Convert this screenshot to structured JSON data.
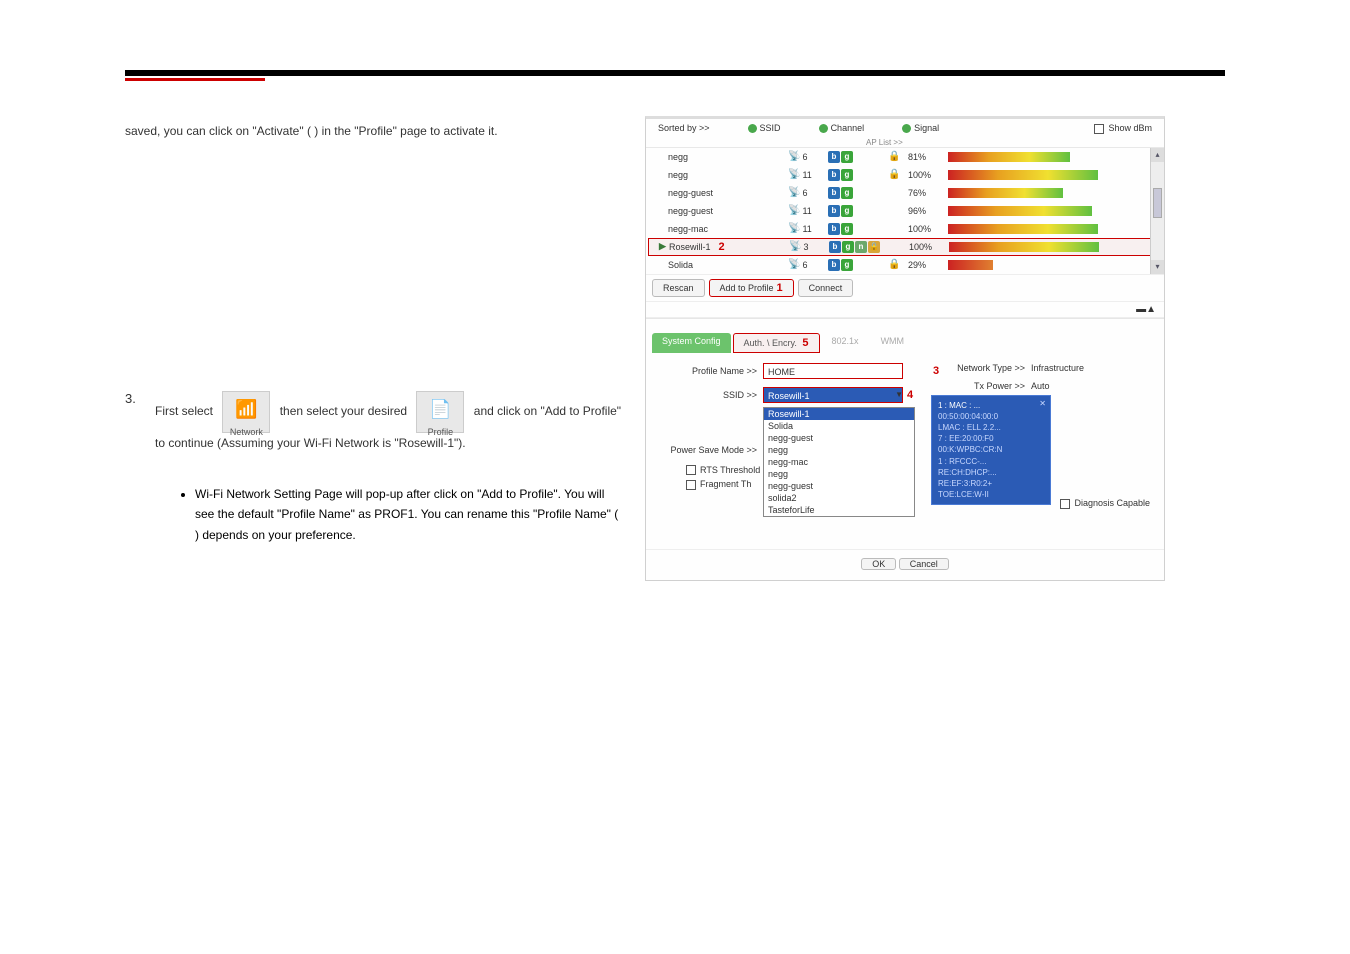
{
  "page": {
    "intro": "saved, you can click on \"Activate\" ( ) in the \"Profile\" page to activate it.",
    "step3_num": "3.",
    "step3_text_a": "First select ",
    "step3_text_b": " then select your desired ",
    "step3_text_c": " and click on \"Add to Profile\" to continue (Assuming your Wi-Fi Network is \"Rosewill-1\").",
    "network_label": "Network",
    "profile_label": "Profile",
    "footer_bullet": "Wi-Fi Network Setting Page will pop-up after click on \"Add to Profile\". You will see the default \"Profile Name\" as PROF1. You can rename this \"Profile Name\" ( ) depends on your preference."
  },
  "ss": {
    "sorted_by": "Sorted by >>",
    "sort_opts": [
      "SSID",
      "Channel",
      "Signal"
    ],
    "show_dbm": "Show dBm",
    "ap_list_lbl": "AP List >>",
    "networks": [
      {
        "ssid": "negg",
        "ch": "6",
        "modes": [
          "b",
          "g"
        ],
        "enc": "🔒",
        "pct": "81%",
        "bar": "p81"
      },
      {
        "ssid": "negg",
        "ch": "11",
        "modes": [
          "b",
          "g"
        ],
        "enc": "🔒",
        "pct": "100%",
        "bar": "p100"
      },
      {
        "ssid": "negg-guest",
        "ch": "6",
        "modes": [
          "b",
          "g"
        ],
        "enc": "",
        "pct": "76%",
        "bar": "p76"
      },
      {
        "ssid": "negg-guest",
        "ch": "11",
        "modes": [
          "b",
          "g"
        ],
        "enc": "",
        "pct": "96%",
        "bar": "p96"
      },
      {
        "ssid": "negg-mac",
        "ch": "11",
        "modes": [
          "b",
          "g"
        ],
        "enc": "",
        "pct": "100%",
        "bar": "p100"
      },
      {
        "ssid": "Rosewill-1",
        "ch": "3",
        "modes": [
          "b",
          "g",
          "n",
          "l"
        ],
        "enc": "",
        "pct": "100%",
        "bar": "p100",
        "selected": true,
        "annot": "2"
      },
      {
        "ssid": "Solida",
        "ch": "6",
        "modes": [
          "b",
          "g"
        ],
        "enc": "🔒",
        "pct": "29%",
        "bar": "p29"
      }
    ],
    "buttons": {
      "rescan": "Rescan",
      "add": "Add to Profile",
      "connect": "Connect",
      "add_annot": "1"
    },
    "tabs": {
      "sys": "System Config",
      "auth": "Auth. \\ Encry.",
      "auth_annot": "5",
      "t3": "802.1x",
      "t4": "WMM"
    },
    "form": {
      "profile_name_lbl": "Profile Name >>",
      "profile_name_val": "HOME",
      "profile_annot": "3",
      "ssid_lbl": "SSID >>",
      "ssid_val": "Rosewill-1",
      "ssid_annot": "4",
      "psm_lbl": "Power Save Mode >>",
      "net_type_lbl": "Network Type >>",
      "net_type_val": "Infrastructure",
      "tx_lbl": "Tx Power >>",
      "tx_val": "Auto",
      "rts_lbl": "RTS Threshold",
      "frag_lbl": "Fragment Th",
      "diag": "Diagnosis Capable",
      "ok": "OK",
      "cancel": "Cancel"
    },
    "dropdown_opts": [
      "Rosewill-1",
      "Solida",
      "negg-guest",
      "negg",
      "negg-mac",
      "negg",
      "negg-guest",
      "solida2",
      "TasteforLife"
    ],
    "tooltip": {
      "lines": [
        "1 : MAC : ...",
        "00:50:00:04:00:0",
        "LMAC : ELL 2.2...",
        "7 : EE:20:00:F0",
        "00:K:WPBC:CR:N",
        "1 : RFCCC-...",
        "RE:CH:DHCP:...",
        "RE:EF:3:R0:2+",
        "TOE:LCE:W-II"
      ]
    }
  }
}
